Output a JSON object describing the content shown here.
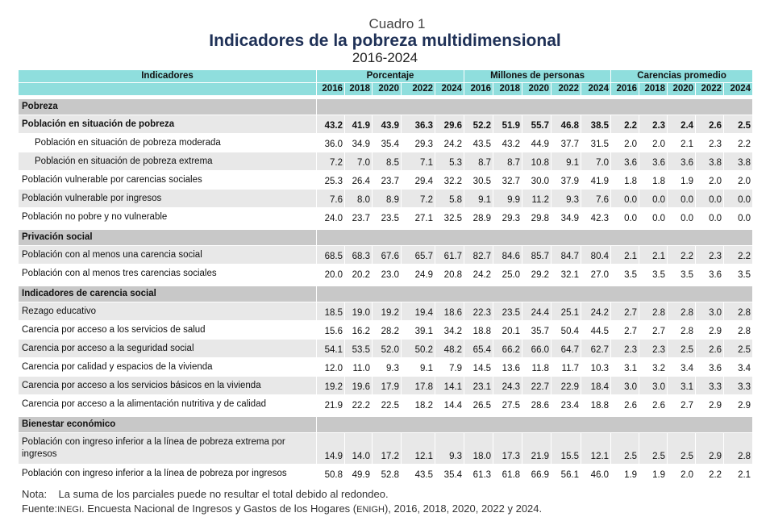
{
  "header": {
    "cuadro": "Cuadro 1",
    "title": "Indicadores de la pobreza multidimensional",
    "period": "2016-2024"
  },
  "table": {
    "indicator_header": "Indicadores",
    "groups": [
      "Porcentaje",
      "Millones de personas",
      "Carencias promedio"
    ],
    "years": [
      "2016",
      "2018",
      "2020",
      "2022",
      "2024"
    ],
    "sections": [
      {
        "title": "Pobreza",
        "rows": [
          {
            "label": "Población en situación de pobreza",
            "bold": true,
            "values": [
              "43.2",
              "41.9",
              "43.9",
              "36.3",
              "29.6",
              "52.2",
              "51.9",
              "55.7",
              "46.8",
              "38.5",
              "2.2",
              "2.3",
              "2.4",
              "2.6",
              "2.5"
            ]
          },
          {
            "label": "Población en situación de pobreza moderada",
            "indent": true,
            "values": [
              "36.0",
              "34.9",
              "35.4",
              "29.3",
              "24.2",
              "43.5",
              "43.2",
              "44.9",
              "37.7",
              "31.5",
              "2.0",
              "2.0",
              "2.1",
              "2.3",
              "2.2"
            ]
          },
          {
            "label": "Población en situación de pobreza extrema",
            "indent": true,
            "values": [
              "7.2",
              "7.0",
              "8.5",
              "7.1",
              "5.3",
              "8.7",
              "8.7",
              "10.8",
              "9.1",
              "7.0",
              "3.6",
              "3.6",
              "3.6",
              "3.8",
              "3.8"
            ]
          },
          {
            "label": "Población vulnerable por carencias sociales",
            "values": [
              "25.3",
              "26.4",
              "23.7",
              "29.4",
              "32.2",
              "30.5",
              "32.7",
              "30.0",
              "37.9",
              "41.9",
              "1.8",
              "1.8",
              "1.9",
              "2.0",
              "2.0"
            ]
          },
          {
            "label": "Población vulnerable por ingresos",
            "values": [
              "7.6",
              "8.0",
              "8.9",
              "7.2",
              "5.8",
              "9.1",
              "9.9",
              "11.2",
              "9.3",
              "7.6",
              "0.0",
              "0.0",
              "0.0",
              "0.0",
              "0.0"
            ]
          },
          {
            "label": "Población no pobre y no vulnerable",
            "values": [
              "24.0",
              "23.7",
              "23.5",
              "27.1",
              "32.5",
              "28.9",
              "29.3",
              "29.8",
              "34.9",
              "42.3",
              "0.0",
              "0.0",
              "0.0",
              "0.0",
              "0.0"
            ]
          }
        ]
      },
      {
        "title": "Privación social",
        "rows": [
          {
            "label": "Población con al menos una carencia social",
            "values": [
              "68.5",
              "68.3",
              "67.6",
              "65.7",
              "61.7",
              "82.7",
              "84.6",
              "85.7",
              "84.7",
              "80.4",
              "2.1",
              "2.1",
              "2.2",
              "2.3",
              "2.2"
            ]
          },
          {
            "label": "Población con al menos tres carencias sociales",
            "values": [
              "20.0",
              "20.2",
              "23.0",
              "24.9",
              "20.8",
              "24.2",
              "25.0",
              "29.2",
              "32.1",
              "27.0",
              "3.5",
              "3.5",
              "3.5",
              "3.6",
              "3.5"
            ]
          }
        ]
      },
      {
        "title": "Indicadores de carencia social",
        "rows": [
          {
            "label": "Rezago educativo",
            "values": [
              "18.5",
              "19.0",
              "19.2",
              "19.4",
              "18.6",
              "22.3",
              "23.5",
              "24.4",
              "25.1",
              "24.2",
              "2.7",
              "2.8",
              "2.8",
              "3.0",
              "2.8"
            ]
          },
          {
            "label": "Carencia por acceso a los servicios de salud",
            "values": [
              "15.6",
              "16.2",
              "28.2",
              "39.1",
              "34.2",
              "18.8",
              "20.1",
              "35.7",
              "50.4",
              "44.5",
              "2.7",
              "2.7",
              "2.8",
              "2.9",
              "2.8"
            ]
          },
          {
            "label": "Carencia por acceso a la seguridad social",
            "values": [
              "54.1",
              "53.5",
              "52.0",
              "50.2",
              "48.2",
              "65.4",
              "66.2",
              "66.0",
              "64.7",
              "62.7",
              "2.3",
              "2.3",
              "2.5",
              "2.6",
              "2.5"
            ]
          },
          {
            "label": "Carencia por calidad y espacios de la vivienda",
            "values": [
              "12.0",
              "11.0",
              "9.3",
              "9.1",
              "7.9",
              "14.5",
              "13.6",
              "11.8",
              "11.7",
              "10.3",
              "3.1",
              "3.2",
              "3.4",
              "3.6",
              "3.4"
            ]
          },
          {
            "label": "Carencia por acceso a los servicios básicos en la vivienda",
            "values": [
              "19.2",
              "19.6",
              "17.9",
              "17.8",
              "14.1",
              "23.1",
              "24.3",
              "22.7",
              "22.9",
              "18.4",
              "3.0",
              "3.0",
              "3.1",
              "3.3",
              "3.3"
            ]
          },
          {
            "label": "Carencia por acceso a la alimentación nutritiva y de calidad",
            "values": [
              "21.9",
              "22.2",
              "22.5",
              "18.2",
              "14.4",
              "26.5",
              "27.5",
              "28.6",
              "23.4",
              "18.8",
              "2.6",
              "2.6",
              "2.7",
              "2.9",
              "2.9"
            ]
          }
        ]
      },
      {
        "title": "Bienestar económico",
        "rows": [
          {
            "label": "Población con ingreso inferior a la línea de pobreza extrema por ingresos",
            "tall": true,
            "values": [
              "14.9",
              "14.0",
              "17.2",
              "12.1",
              "9.3",
              "18.0",
              "17.3",
              "21.9",
              "15.5",
              "12.1",
              "2.5",
              "2.5",
              "2.5",
              "2.9",
              "2.8"
            ]
          },
          {
            "label": "Población con ingreso inferior a la línea de pobreza por ingresos",
            "values": [
              "50.8",
              "49.9",
              "52.8",
              "43.5",
              "35.4",
              "61.3",
              "61.8",
              "66.9",
              "56.1",
              "46.0",
              "1.9",
              "1.9",
              "2.0",
              "2.2",
              "2.1"
            ]
          }
        ]
      }
    ]
  },
  "notes": {
    "nota_label": "Nota:",
    "nota_text": "La suma de los parciales puede no resultar el total debido al redondeo.",
    "fuente_label": "Fuente:",
    "fuente_org": "INEGI",
    "fuente_text_1": ". Encuesta Nacional de Ingresos y Gastos de los Hogares (",
    "fuente_abbr": "ENIGH",
    "fuente_text_2": "), 2016, 2018, 2020, 2022 y 2024."
  }
}
